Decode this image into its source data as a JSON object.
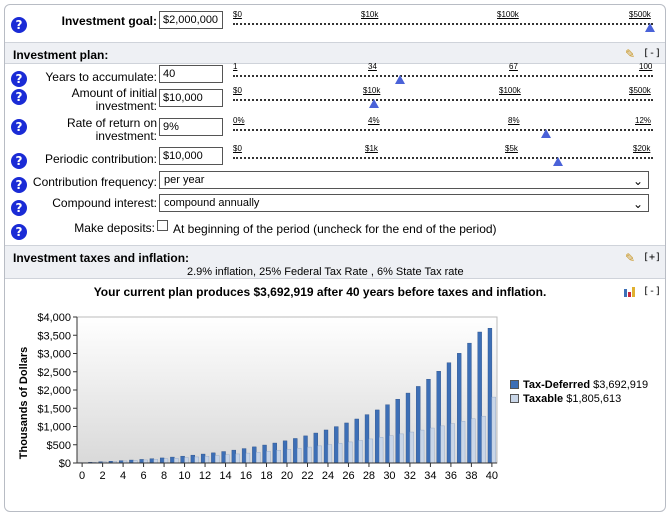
{
  "goal": {
    "label": "Investment goal:",
    "value": "$2,000,000",
    "ticks": [
      "$0",
      "$10k",
      "$100k",
      "$500k"
    ]
  },
  "plan": {
    "title": "Investment plan:",
    "toggle": "[-]",
    "years": {
      "label": "Years to accumulate:",
      "value": "40",
      "ticks": [
        "1",
        "34",
        "67",
        "100"
      ]
    },
    "initial": {
      "label1": "Amount of initial",
      "label2": "investment:",
      "value": "$10,000",
      "ticks": [
        "$0",
        "$10k",
        "$100k",
        "$500k"
      ]
    },
    "rate": {
      "label1": "Rate of return on",
      "label2": "investment:",
      "value": "9%",
      "ticks": [
        "0%",
        "4%",
        "8%",
        "12%"
      ]
    },
    "periodic": {
      "label": "Periodic contribution:",
      "value": "$10,000",
      "ticks": [
        "$0",
        "$1k",
        "$5k",
        "$20k"
      ]
    },
    "frequency": {
      "label": "Contribution frequency:",
      "value": "per year"
    },
    "compound": {
      "label": "Compound interest:",
      "value": "compound annually"
    },
    "deposits": {
      "label": "Make deposits:",
      "text": "At beginning of the period (uncheck for the end of the period)"
    }
  },
  "taxes": {
    "title": "Investment taxes and inflation:",
    "toggle": "[+]",
    "summary": "2.9% inflation, 25% Federal Tax Rate , 6% State Tax rate"
  },
  "result": {
    "headline": "Your current plan produces $3,692,919 after 40 years before taxes and inflation.",
    "toggle": "[-]"
  },
  "colors": {
    "help": "#1a2bd6",
    "taxdeferred": "#3d6fb6",
    "taxable": "#c9d6e8"
  },
  "chart_data": {
    "type": "bar",
    "ylabel": "Thousands of Dollars",
    "ylim": [
      0,
      4000
    ],
    "yticks": [
      "$4,000",
      "$3,500",
      "$3,000",
      "$2,500",
      "$2,000",
      "$1,500",
      "$1,000",
      "$500",
      "$0"
    ],
    "xticks": [
      "0",
      "2",
      "4",
      "6",
      "8",
      "10",
      "12",
      "14",
      "16",
      "18",
      "20",
      "22",
      "24",
      "26",
      "28",
      "30",
      "32",
      "34",
      "36",
      "38",
      "40"
    ],
    "legend_position": "right",
    "categories": [
      0,
      1,
      2,
      3,
      4,
      5,
      6,
      7,
      8,
      9,
      10,
      11,
      12,
      13,
      14,
      15,
      16,
      17,
      18,
      19,
      20,
      21,
      22,
      23,
      24,
      25,
      26,
      27,
      28,
      29,
      30,
      31,
      32,
      33,
      34,
      35,
      36,
      37,
      38,
      39,
      40
    ],
    "series": [
      {
        "name": "Tax-Deferred",
        "amount": "$3,692,919",
        "values": [
          10,
          22,
          35,
          49,
          64,
          81,
          98,
          118,
          139,
          162,
          187,
          215,
          245,
          278,
          314,
          353,
          395,
          442,
          492,
          547,
          607,
          672,
          743,
          821,
          905,
          997,
          1097,
          1206,
          1325,
          1454,
          1595,
          1748,
          1916,
          2098,
          2296,
          2513,
          2748,
          3005,
          3284,
          3589,
          3693
        ]
      },
      {
        "name": "Taxable",
        "amount": "$1,805,613",
        "values": [
          10,
          21,
          32,
          44,
          57,
          70,
          84,
          99,
          115,
          131,
          148,
          166,
          185,
          205,
          226,
          248,
          271,
          295,
          321,
          348,
          376,
          405,
          436,
          469,
          503,
          539,
          577,
          617,
          659,
          703,
          749,
          797,
          848,
          902,
          958,
          1017,
          1079,
          1144,
          1212,
          1283,
          1806
        ]
      }
    ]
  }
}
